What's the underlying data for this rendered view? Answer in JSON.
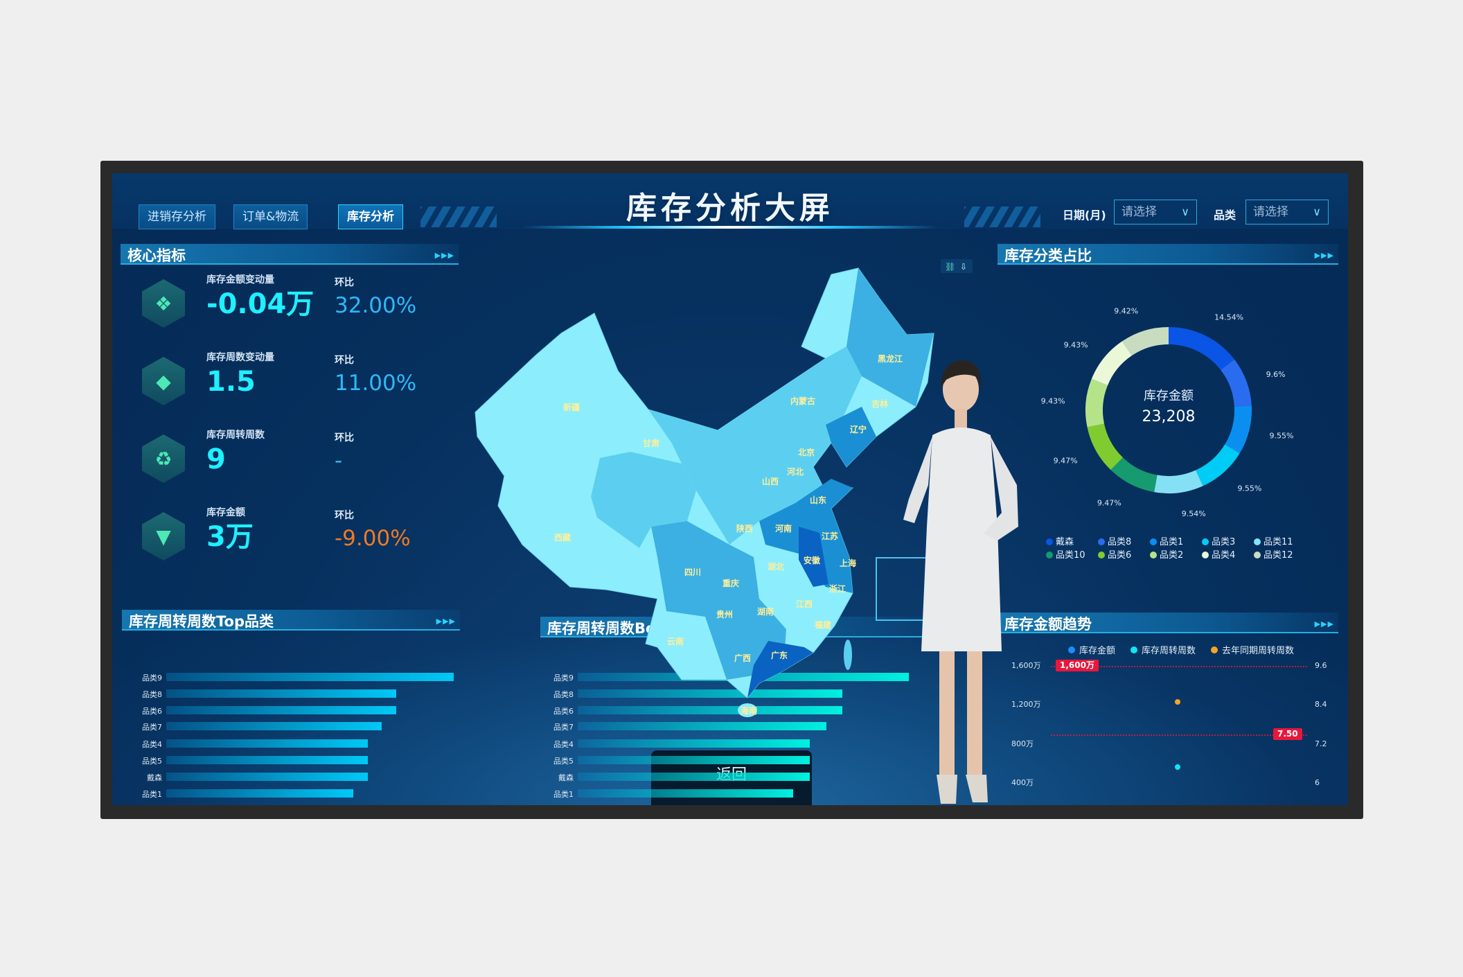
{
  "header": {
    "title": "库存分析大屏",
    "tabs": [
      {
        "label": "进销存分析",
        "active": false
      },
      {
        "label": "订单&物流",
        "active": false
      },
      {
        "label": "库存分析",
        "active": true
      }
    ],
    "filters": [
      {
        "label": "日期(月)",
        "value": "请选择"
      },
      {
        "label": "品类",
        "value": "请选择"
      }
    ]
  },
  "kpi": {
    "title": "核心指标",
    "items": [
      {
        "label": "库存金额变动量",
        "value": "-0.04万",
        "cmp_label": "环比",
        "cmp_value": "32.00%",
        "cmp_color": "#2fb8f6",
        "icon": "gem-cube-icon"
      },
      {
        "label": "库存周数变动量",
        "value": "1.5",
        "cmp_label": "环比",
        "cmp_value": "11.00%",
        "cmp_color": "#2fb8f6",
        "icon": "box-icon"
      },
      {
        "label": "库存周转周数",
        "value": "9",
        "cmp_label": "环比",
        "cmp_value": "-",
        "cmp_color": "#2fb8f6",
        "icon": "cycle-icon"
      },
      {
        "label": "库存金额",
        "value": "3万",
        "cmp_label": "环比",
        "cmp_value": "-9.00%",
        "cmp_color": "#f07a22",
        "icon": "diamond-icon"
      }
    ]
  },
  "map": {
    "provinces": [
      "新疆",
      "甘肃",
      "西藏",
      "内蒙古",
      "黑龙江",
      "吉林",
      "辽宁",
      "北京",
      "河北",
      "山西",
      "山东",
      "陕西",
      "河南",
      "江苏",
      "安徽",
      "上海",
      "湖北",
      "四川",
      "重庆",
      "浙江",
      "江西",
      "贵州",
      "湖南",
      "福建",
      "云南",
      "广西",
      "广东",
      "海南"
    ],
    "colors": {
      "light": "#8ceefc",
      "mid": "#5ccff0",
      "mid2": "#3cb0e2",
      "dark": "#1b8fd3",
      "darker": "#0a63c2"
    }
  },
  "overlay": {
    "back_label": "返回"
  },
  "chart_data": [
    {
      "type": "pie",
      "title": "库存分类占比",
      "center_label": "库存金额",
      "center_value": "23,208",
      "categories": [
        "戴森",
        "品类8",
        "品类1",
        "品类3",
        "品类11",
        "品类10",
        "品类6",
        "品类2",
        "品类4",
        "品类12"
      ],
      "values": [
        14.54,
        9.6,
        9.55,
        9.55,
        9.54,
        9.47,
        9.47,
        9.43,
        9.43,
        9.42
      ],
      "labels": [
        "14.54%",
        "9.6%",
        "9.55%",
        "9.55%",
        "9.54%",
        "9.47%",
        "9.47%",
        "9.43%",
        "9.43%",
        "9.42%"
      ],
      "colors": [
        "#0a55e6",
        "#2a6cf0",
        "#0a8ff0",
        "#00ccf5",
        "#86e0f5",
        "#169a70",
        "#80cc30",
        "#b5e38a",
        "#eaf8d8",
        "#c8dcc0"
      ],
      "legend": "bottom"
    },
    {
      "type": "bar",
      "orientation": "horizontal",
      "title": "库存周转周数Top品类",
      "categories": [
        "品类9",
        "品类8",
        "品类6",
        "品类7",
        "品类4",
        "品类5",
        "戴森",
        "品类1"
      ],
      "values": [
        100,
        80,
        80,
        75,
        70,
        70,
        70,
        65
      ],
      "xlim": [
        0,
        100
      ],
      "color": "#00c8f5"
    },
    {
      "type": "bar",
      "orientation": "horizontal",
      "title": "库存周转周数Bottom品类",
      "categories": [
        "品类9",
        "品类8",
        "品类6",
        "品类7",
        "品类4",
        "品类5",
        "戴森",
        "品类1"
      ],
      "values": [
        100,
        80,
        80,
        75,
        70,
        70,
        70,
        65
      ],
      "xlim": [
        0,
        100
      ],
      "color": "#00f0e0"
    },
    {
      "type": "line",
      "title": "库存金额趋势",
      "legend_entries": [
        {
          "name": "库存金额",
          "color": "#1a8cff"
        },
        {
          "name": "库存周转周数",
          "color": "#10e6f5"
        },
        {
          "name": "去年同期周转周数",
          "color": "#f5a623"
        }
      ],
      "y_left_ticks": [
        "1,600万",
        "1,200万",
        "800万",
        "400万"
      ],
      "y_left_range": [
        400,
        1600
      ],
      "y_right_ticks": [
        "9.6",
        "8.4",
        "7.2",
        "6"
      ],
      "y_right_range": [
        6,
        9.6
      ],
      "series": [
        {
          "name": "库存周转周数",
          "values": [
            6.5
          ]
        },
        {
          "name": "去年同期周转周数",
          "values": [
            8.5
          ]
        }
      ],
      "mark_lines": [
        {
          "label": "1,600万",
          "axis": "left",
          "value": 1600
        },
        {
          "label": "7.50",
          "axis": "right",
          "value": 7.5
        }
      ],
      "mark_color": "#e8173c"
    }
  ]
}
